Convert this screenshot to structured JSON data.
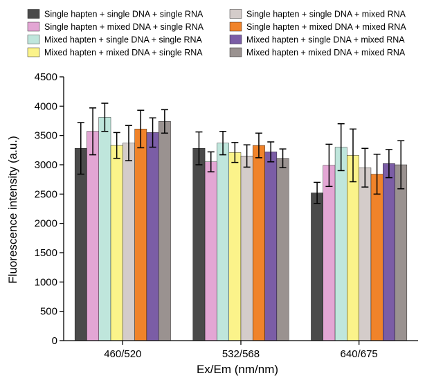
{
  "chart_data": {
    "type": "bar",
    "xlabel": "Ex/Em (nm/nm)",
    "ylabel": "Fluorescence intensity (a.u.)",
    "ylim": [
      0,
      4500
    ],
    "yticks": [
      0,
      500,
      1000,
      1500,
      2000,
      2500,
      3000,
      3500,
      4000,
      4500
    ],
    "categories": [
      "460/520",
      "532/568",
      "640/675"
    ],
    "grid": false,
    "legend_position": "top",
    "series": [
      {
        "name": "Single hapten + single DNA + single RNA",
        "color": "#4a4a4a",
        "values": [
          3280,
          3280,
          2520
        ],
        "errors": [
          440,
          280,
          180
        ]
      },
      {
        "name": "Single hapten + mixed DNA + single RNA",
        "color": "#e3a6d4",
        "values": [
          3570,
          3050,
          2990
        ],
        "errors": [
          400,
          170,
          360
        ]
      },
      {
        "name": "Mixed hapten + single DNA + single RNA",
        "color": "#bfe6dc",
        "values": [
          3810,
          3370,
          3300
        ],
        "errors": [
          240,
          200,
          400
        ]
      },
      {
        "name": "Mixed hapten + mixed DNA + single RNA",
        "color": "#fbf38a",
        "values": [
          3330,
          3210,
          3160
        ],
        "errors": [
          220,
          170,
          450
        ]
      },
      {
        "name": "Single hapten + single DNA + mixed RNA",
        "color": "#d4ccca",
        "values": [
          3370,
          3150,
          2950
        ],
        "errors": [
          300,
          190,
          330
        ]
      },
      {
        "name": "Single hapten + mixed DNA + mixed RNA",
        "color": "#f0832a",
        "values": [
          3610,
          3330,
          2840
        ],
        "errors": [
          320,
          210,
          340
        ]
      },
      {
        "name": "Mixed hapten + single DNA + mixed RNA",
        "color": "#7b5da6",
        "values": [
          3550,
          3220,
          3020
        ],
        "errors": [
          250,
          170,
          240
        ]
      },
      {
        "name": "Mixed hapten + mixed DNA + mixed RNA",
        "color": "#9a9290",
        "values": [
          3740,
          3110,
          3000
        ],
        "errors": [
          200,
          160,
          410
        ]
      }
    ]
  }
}
